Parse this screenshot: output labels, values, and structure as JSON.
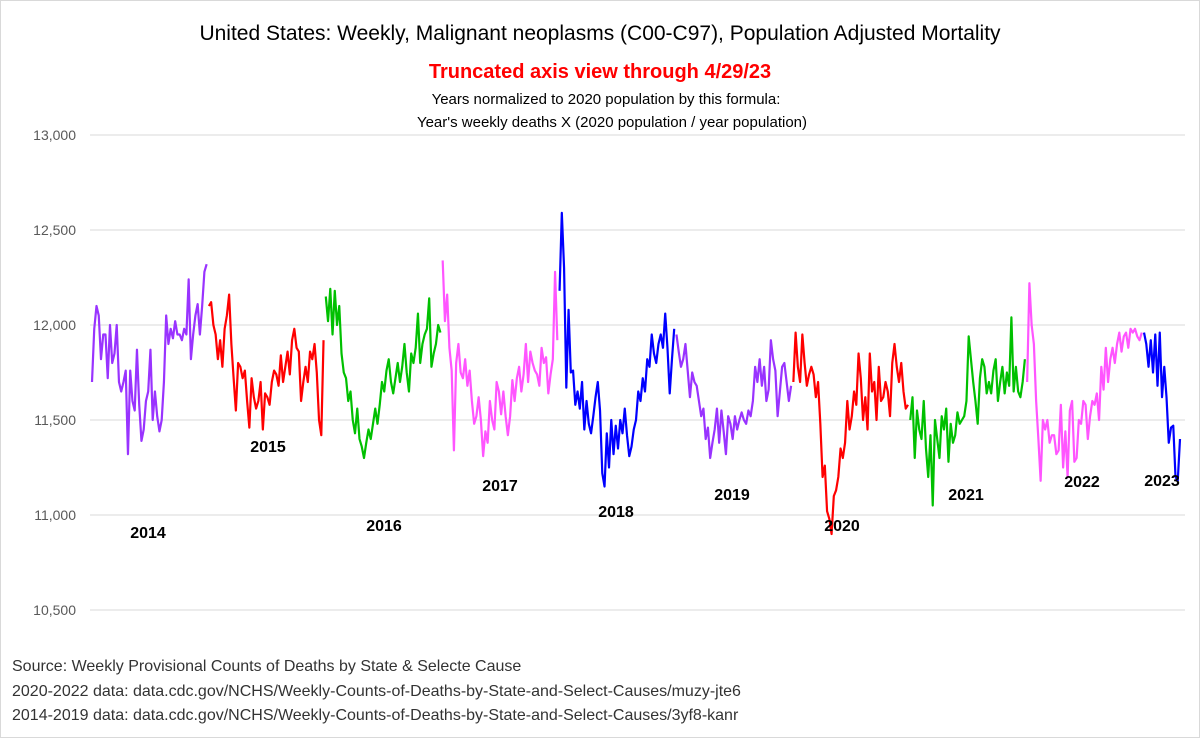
{
  "chart_data": {
    "type": "line",
    "title": "United States: Weekly, Malignant neoplasms (C00-C97), Population Adjusted Mortality",
    "subtitle": "Truncated axis view through 4/29/23",
    "notes": [
      "Years normalized to 2020 population by this formula:",
      "Year's weekly deaths  X (2020 population / year population)"
    ],
    "source_lines": [
      "Source: Weekly Provisional Counts of Deaths by State & Selecte Cause",
      "2020-2022 data: data.cdc.gov/NCHS/Weekly-Counts-of-Deaths-by-State-and-Select-Causes/muzy-jte6",
      "2014-2019 data: data.cdc.gov/NCHS/Weekly-Counts-of-Deaths-by-State-and-Select-Causes/3yf8-kanr"
    ],
    "ylim": [
      10500,
      13000
    ],
    "yticks": [
      {
        "value": 10500,
        "label": "10,500"
      },
      {
        "value": 11000,
        "label": "11,000"
      },
      {
        "value": 11500,
        "label": "11,500"
      },
      {
        "value": 12000,
        "label": "12,000"
      },
      {
        "value": 12500,
        "label": "12,500"
      },
      {
        "value": 13000,
        "label": "13,000"
      }
    ],
    "grid": true,
    "series": [
      {
        "name": "2014",
        "color": "#9933ff",
        "values": [
          11700,
          11980,
          12100,
          12050,
          11820,
          11950,
          11950,
          11720,
          12000,
          11800,
          11850,
          12000,
          11700,
          11650,
          11700,
          11760,
          11320,
          11760,
          11600,
          11550,
          11870,
          11580,
          11390,
          11450,
          11600,
          11650,
          11870,
          11500,
          11650,
          11520,
          11440,
          11500,
          11700,
          12050,
          11900,
          11980,
          11930,
          12020,
          11950,
          11950,
          11920,
          11980,
          11950,
          12240,
          11820,
          11950,
          12050,
          12110,
          11950,
          12100,
          12280,
          12320
        ]
      },
      {
        "name": "2015",
        "color": "#ff0000",
        "values": [
          12100,
          12120,
          12000,
          11950,
          11820,
          11920,
          11780,
          11980,
          12050,
          12160,
          11900,
          11720,
          11550,
          11800,
          11780,
          11720,
          11760,
          11600,
          11460,
          11720,
          11620,
          11560,
          11600,
          11700,
          11450,
          11640,
          11620,
          11580,
          11700,
          11760,
          11740,
          11680,
          11840,
          11700,
          11780,
          11860,
          11740,
          11920,
          11980,
          11880,
          11860,
          11600,
          11700,
          11780,
          11700,
          11860,
          11820,
          11900,
          11750,
          11500,
          11420,
          11920
        ]
      },
      {
        "name": "2016",
        "color": "#00c000",
        "values": [
          12150,
          12020,
          12190,
          11950,
          12180,
          12000,
          12100,
          11850,
          11750,
          11720,
          11600,
          11650,
          11500,
          11430,
          11560,
          11400,
          11360,
          11300,
          11380,
          11450,
          11400,
          11480,
          11560,
          11480,
          11580,
          11700,
          11650,
          11760,
          11820,
          11700,
          11640,
          11720,
          11800,
          11700,
          11780,
          11900,
          11750,
          11650,
          11850,
          11800,
          11880,
          12060,
          11800,
          11900,
          11950,
          11980,
          12140,
          11780,
          11850,
          11900,
          12000,
          11960
        ]
      },
      {
        "name": "2017",
        "color": "#ff55ff",
        "values": [
          12340,
          12020,
          12160,
          11880,
          11760,
          11340,
          11800,
          11900,
          11750,
          11720,
          11820,
          11680,
          11760,
          11600,
          11480,
          11520,
          11620,
          11500,
          11310,
          11440,
          11380,
          11600,
          11500,
          11450,
          11700,
          11650,
          11530,
          11650,
          11520,
          11420,
          11520,
          11710,
          11600,
          11720,
          11780,
          11650,
          11740,
          11900,
          11700,
          11860,
          11800,
          11760,
          11740,
          11680,
          11880,
          11800,
          11830,
          11640,
          11740,
          11820,
          12280,
          11920
        ]
      },
      {
        "name": "2018",
        "color": "#0000ff",
        "values": [
          12180,
          12590,
          12300,
          11670,
          12080,
          11750,
          11760,
          11580,
          11650,
          11560,
          11700,
          11450,
          11600,
          11480,
          11430,
          11520,
          11620,
          11700,
          11550,
          11220,
          11150,
          11430,
          11250,
          11500,
          11320,
          11470,
          11350,
          11500,
          11430,
          11560,
          11420,
          11310,
          11360,
          11450,
          11500,
          11650,
          11600,
          11720,
          11650,
          11820,
          11780,
          11950,
          11850,
          11800,
          11900,
          11950,
          11880,
          12060,
          11880,
          11640,
          11820,
          11980
        ]
      },
      {
        "name": "2019",
        "color": "#9933ff",
        "values": [
          11950,
          11860,
          11780,
          11820,
          11900,
          11760,
          11620,
          11750,
          11700,
          11680,
          11600,
          11520,
          11560,
          11400,
          11460,
          11300,
          11380,
          11450,
          11560,
          11380,
          11550,
          11440,
          11320,
          11520,
          11480,
          11400,
          11520,
          11450,
          11500,
          11540,
          11500,
          11480,
          11550,
          11520,
          11600,
          11780,
          11700,
          11820,
          11680,
          11780,
          11600,
          11660,
          11920,
          11820,
          11760,
          11520,
          11650,
          11780,
          11800,
          11700,
          11600,
          11680
        ]
      },
      {
        "name": "2020",
        "color": "#ff0000",
        "values": [
          11700,
          11960,
          11780,
          11700,
          11950,
          11800,
          11680,
          11740,
          11780,
          11740,
          11620,
          11700,
          11480,
          11200,
          11260,
          11020,
          10980,
          10900,
          11100,
          11130,
          11200,
          11350,
          11300,
          11380,
          11600,
          11450,
          11520,
          11650,
          11580,
          11850,
          11720,
          11500,
          11620,
          11450,
          11850,
          11650,
          11700,
          11500,
          11780,
          11600,
          11620,
          11700,
          11650,
          11520,
          11800,
          11900,
          11780,
          11700,
          11800,
          11650,
          11560,
          11580
        ]
      },
      {
        "name": "2021",
        "color": "#00c000",
        "values": [
          11500,
          11620,
          11300,
          11550,
          11450,
          11400,
          11600,
          11350,
          11200,
          11420,
          11050,
          11500,
          11400,
          11300,
          11520,
          11450,
          11560,
          11280,
          11480,
          11380,
          11420,
          11540,
          11480,
          11500,
          11520,
          11600,
          11940,
          11820,
          11700,
          11600,
          11480,
          11720,
          11820,
          11780,
          11640,
          11700,
          11640,
          11760,
          11820,
          11600,
          11700,
          11780,
          11640,
          11750,
          11680,
          12040,
          11650,
          11780,
          11650,
          11620,
          11700,
          11820
        ]
      },
      {
        "name": "2022",
        "color": "#ff55ff",
        "values": [
          11700,
          12220,
          12000,
          11900,
          11600,
          11400,
          11180,
          11500,
          11450,
          11500,
          11380,
          11420,
          11420,
          11320,
          11340,
          11580,
          11250,
          11440,
          11200,
          11550,
          11600,
          11280,
          11300,
          11500,
          11480,
          11600,
          11580,
          11400,
          11520,
          11600,
          11580,
          11640,
          11500,
          11780,
          11660,
          11880,
          11700,
          11820,
          11880,
          11800,
          11900,
          11960,
          11860,
          11940,
          11960,
          11880,
          11980,
          11960,
          11980,
          11940,
          11920,
          11960
        ]
      },
      {
        "name": "2023",
        "color": "#0000ff",
        "values": [
          11960,
          11900,
          11780,
          11920,
          11750,
          11950,
          11680,
          11960,
          11620,
          11780,
          11620,
          11380,
          11460,
          11470,
          11200,
          11180,
          11400
        ]
      }
    ]
  }
}
